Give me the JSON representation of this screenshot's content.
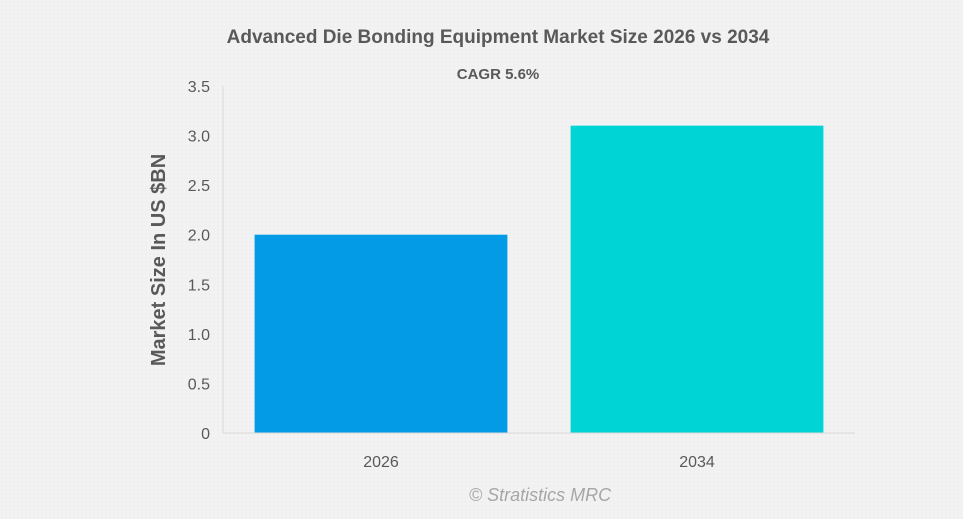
{
  "chart_data": {
    "type": "bar",
    "title": "Advanced Die Bonding Equipment Market Size 2026 vs 2034",
    "subtitle": "CAGR 5.6%",
    "xlabel": "",
    "ylabel": "Market Size In US $BN",
    "categories": [
      "2026",
      "2034"
    ],
    "values": [
      2.0,
      3.1
    ],
    "ylim": [
      0,
      3.5
    ],
    "yticks": [
      "0",
      "0.5",
      "1.0",
      "1.5",
      "2.0",
      "2.5",
      "3.0",
      "3.5"
    ],
    "yticks_values": [
      0,
      0.5,
      1.0,
      1.5,
      2.0,
      2.5,
      3.0,
      3.5
    ],
    "colors": [
      "#039be5",
      "#00d4d4"
    ],
    "grid": false,
    "legend": "none"
  },
  "watermark": "© Stratistics MRC"
}
